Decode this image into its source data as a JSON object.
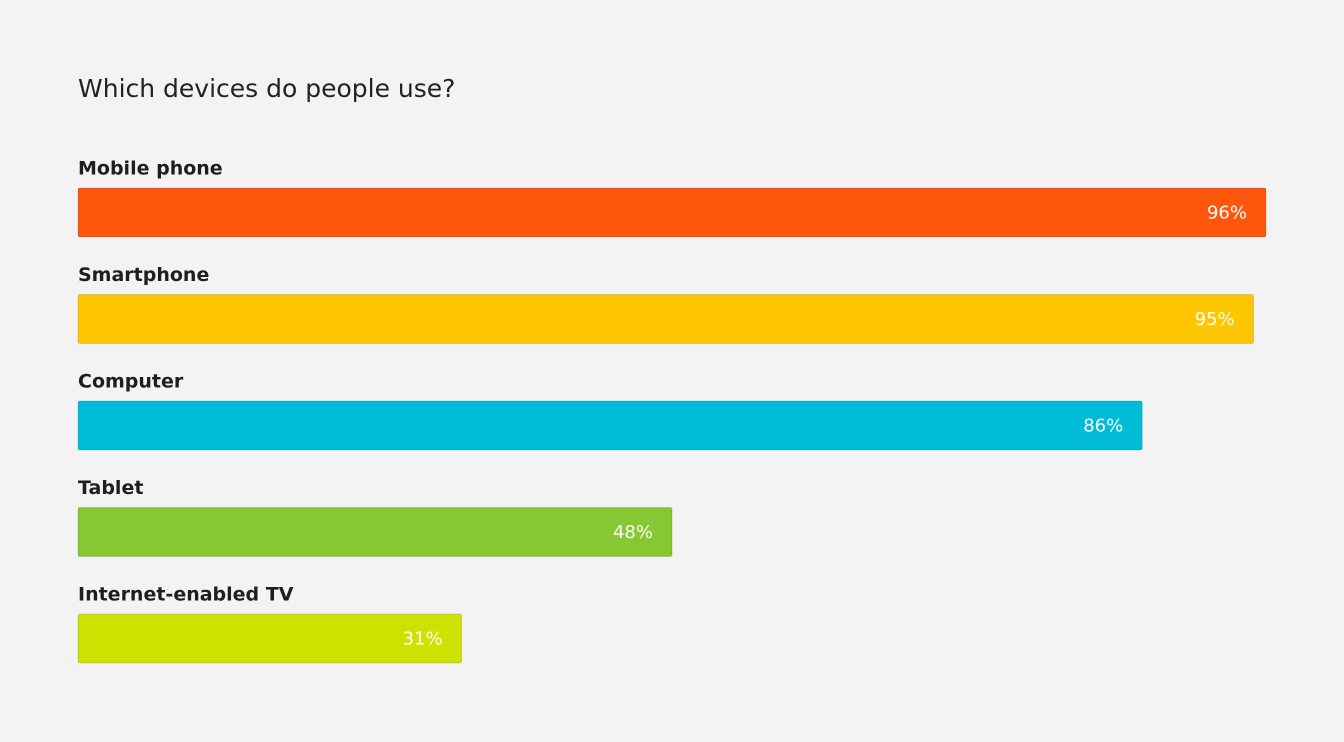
{
  "chart_data": {
    "type": "bar",
    "orientation": "horizontal",
    "title": "Which devices do people use?",
    "categories": [
      "Mobile phone",
      "Smartphone",
      "Computer",
      "Tablet",
      "Internet-enabled TV"
    ],
    "values": [
      96,
      95,
      86,
      48,
      31
    ],
    "value_labels": [
      "96%",
      "95%",
      "86%",
      "48%",
      "31%"
    ],
    "colors": [
      "#ff560d",
      "#fec600",
      "#00bcd7",
      "#86c832",
      "#cde200"
    ]
  }
}
